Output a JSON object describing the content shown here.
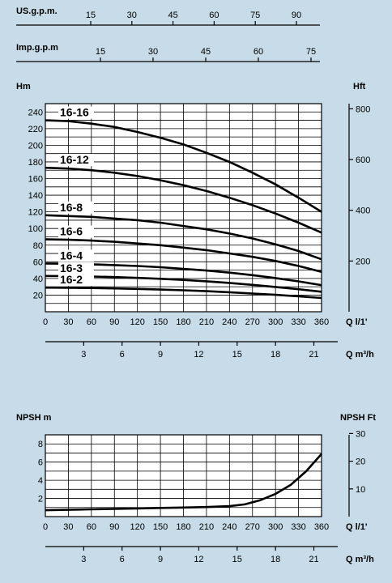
{
  "chart_data": [
    {
      "type": "line",
      "title": "",
      "unit_axes": [
        {
          "label": "US.g.p.m.",
          "ticks": [
            "15",
            "30",
            "45",
            "60",
            "75",
            "90"
          ],
          "values": [
            15,
            30,
            45,
            60,
            75,
            90
          ]
        },
        {
          "label": "Imp.g.p.m",
          "ticks": [
            "15",
            "30",
            "45",
            "60",
            "75"
          ],
          "values": [
            15,
            30,
            45,
            60,
            75
          ]
        }
      ],
      "ylabel": "Hm",
      "ylabel_right": "Hft",
      "xlabel": "Q l/1'",
      "xlabel_secondary": "Q m³/h",
      "x_ticks": [
        "0",
        "30",
        "60",
        "90",
        "120",
        "150",
        "180",
        "210",
        "240",
        "270",
        "300",
        "330",
        "360"
      ],
      "x_secondary_ticks": [
        "3",
        "6",
        "9",
        "12",
        "15",
        "18",
        "21"
      ],
      "y_ticks": [
        "20",
        "40",
        "60",
        "80",
        "100",
        "120",
        "140",
        "160",
        "180",
        "200",
        "220",
        "240"
      ],
      "y_right_ticks": [
        "200",
        "400",
        "600",
        "800"
      ],
      "xlim": [
        0,
        360
      ],
      "ylim": [
        0,
        250
      ],
      "grid": true,
      "series": [
        {
          "name": "16-16",
          "x": [
            0,
            30,
            60,
            90,
            120,
            150,
            180,
            210,
            240,
            270,
            300,
            330,
            360
          ],
          "y": [
            230,
            229,
            226,
            222,
            216,
            209,
            201,
            191,
            180,
            167,
            153,
            137,
            120
          ]
        },
        {
          "name": "16-12",
          "x": [
            0,
            30,
            60,
            90,
            120,
            150,
            180,
            210,
            240,
            270,
            300,
            330,
            360
          ],
          "y": [
            173,
            172,
            170,
            167,
            163,
            158,
            152,
            145,
            137,
            128,
            118,
            107,
            95
          ]
        },
        {
          "name": "16-8",
          "x": [
            0,
            30,
            60,
            90,
            120,
            150,
            180,
            210,
            240,
            270,
            300,
            330,
            360
          ],
          "y": [
            116,
            115,
            114,
            112,
            110,
            107,
            103,
            99,
            94,
            88,
            81,
            73,
            63
          ]
        },
        {
          "name": "16-6",
          "x": [
            0,
            30,
            60,
            90,
            120,
            150,
            180,
            210,
            240,
            270,
            300,
            330,
            360
          ],
          "y": [
            87,
            86.5,
            85.5,
            84,
            82,
            80,
            77,
            74,
            70,
            66,
            61,
            55,
            48
          ]
        },
        {
          "name": "16-4",
          "x": [
            0,
            30,
            60,
            90,
            120,
            150,
            180,
            210,
            240,
            270,
            300,
            330,
            360
          ],
          "y": [
            58,
            57.7,
            57,
            56,
            55,
            53.5,
            51.5,
            49.5,
            47,
            44,
            40.5,
            36.5,
            32
          ]
        },
        {
          "name": "16-3",
          "x": [
            0,
            30,
            60,
            90,
            120,
            150,
            180,
            210,
            240,
            270,
            300,
            330,
            360
          ],
          "y": [
            43,
            42.8,
            42.3,
            41.6,
            40.7,
            39.6,
            38.2,
            36.6,
            34.6,
            32.3,
            29.8,
            27,
            24
          ]
        },
        {
          "name": "16-2",
          "x": [
            0,
            30,
            60,
            90,
            120,
            150,
            180,
            210,
            240,
            270,
            300,
            330,
            360
          ],
          "y": [
            29,
            28.8,
            28.5,
            28,
            27.4,
            26.7,
            25.8,
            24.7,
            23.4,
            21.9,
            20.3,
            18.5,
            16.5
          ]
        }
      ]
    },
    {
      "type": "line",
      "title": "",
      "ylabel": "NPSH m",
      "ylabel_right": "NPSH  Ft",
      "xlabel": "Q l/1'",
      "xlabel_secondary": "Q m³/h",
      "x_ticks": [
        "0",
        "30",
        "60",
        "90",
        "120",
        "150",
        "180",
        "210",
        "240",
        "270",
        "300",
        "330",
        "360"
      ],
      "x_secondary_ticks": [
        "3",
        "6",
        "9",
        "12",
        "15",
        "18",
        "21"
      ],
      "y_ticks": [
        "2",
        "4",
        "6",
        "8"
      ],
      "y_right_ticks": [
        "10",
        "20",
        "30"
      ],
      "xlim": [
        0,
        360
      ],
      "ylim": [
        0,
        9
      ],
      "grid": true,
      "series": [
        {
          "name": "",
          "x": [
            0,
            30,
            60,
            90,
            120,
            150,
            180,
            210,
            240,
            260,
            280,
            300,
            320,
            340,
            360
          ],
          "y": [
            0.7,
            0.75,
            0.8,
            0.85,
            0.9,
            0.95,
            1.0,
            1.05,
            1.15,
            1.35,
            1.8,
            2.5,
            3.5,
            5.0,
            6.9
          ]
        }
      ]
    }
  ]
}
